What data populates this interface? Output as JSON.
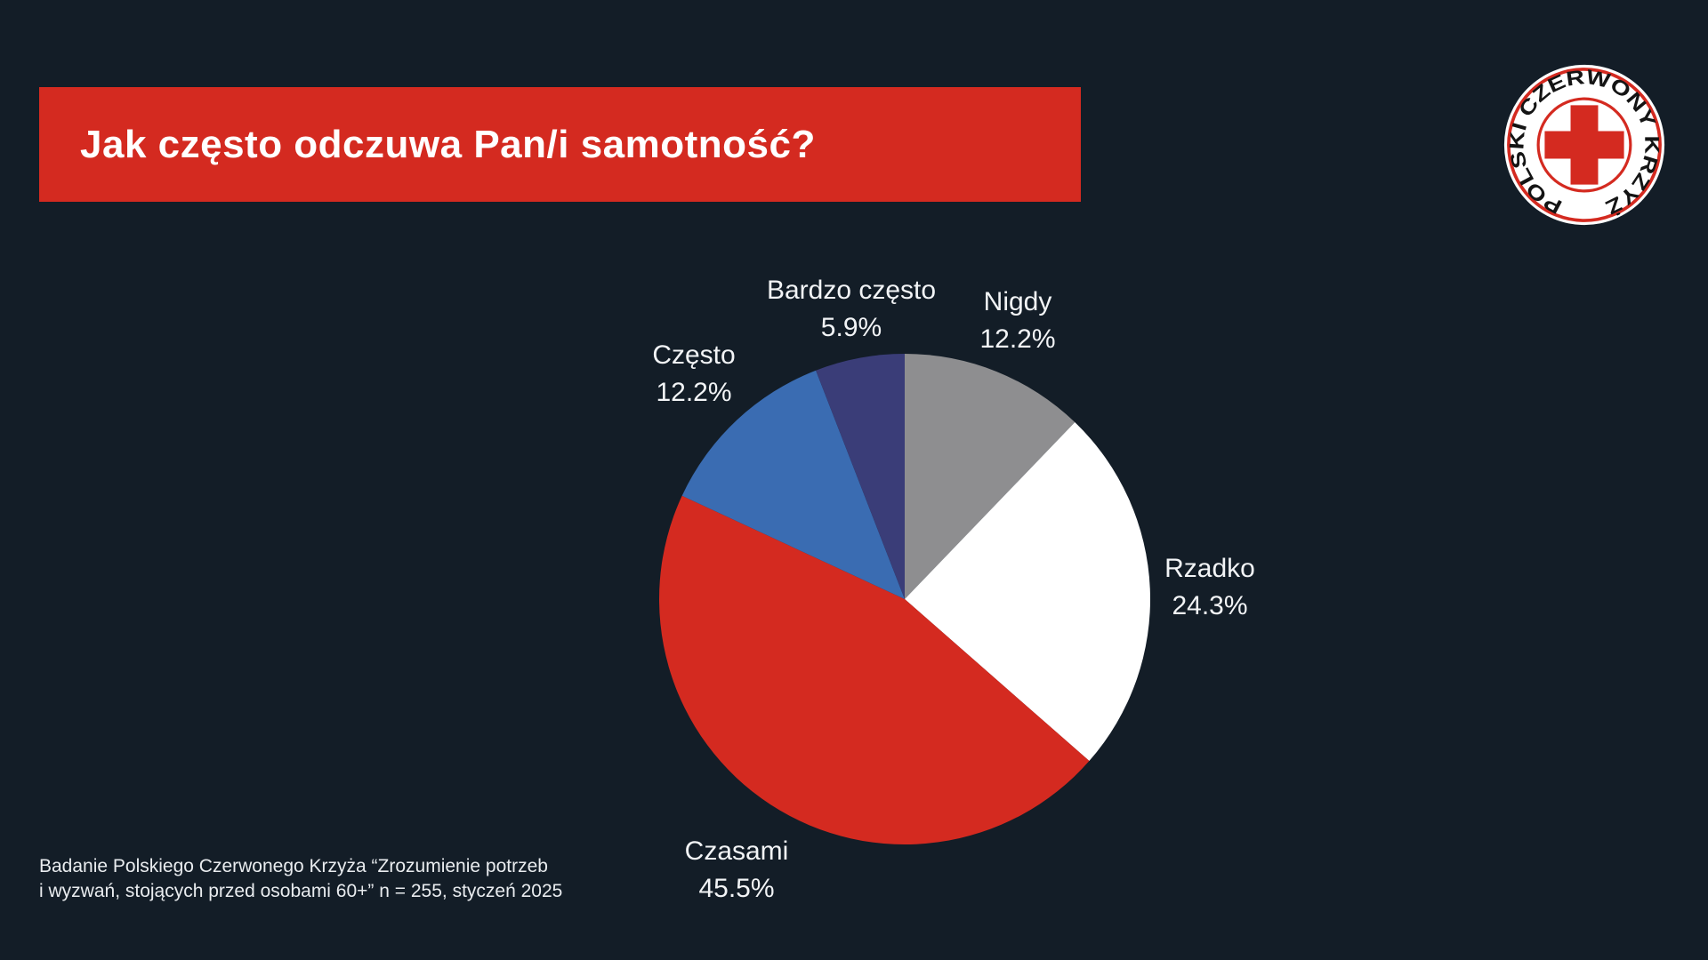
{
  "header": {
    "title": "Jak często odczuwa Pan/i samotność?"
  },
  "logo": {
    "text": "POLSKI CZERWONY KRZYŻ",
    "cross_color": "#d42a20",
    "ring_color": "#d42a20",
    "text_color": "#141414",
    "background": "#ffffff"
  },
  "chart_data": {
    "type": "pie",
    "title": "Jak często odczuwa Pan/i samotność?",
    "legend": "none",
    "start_angle_deg": -90,
    "direction": "clockwise",
    "series": [
      {
        "name": "Nigdy",
        "value": 12.2,
        "pct_label": "12.2%",
        "color": "#8e8e90"
      },
      {
        "name": "Rzadko",
        "value": 24.3,
        "pct_label": "24.3%",
        "color": "#ffffff"
      },
      {
        "name": "Czasami",
        "value": 45.5,
        "pct_label": "45.5%",
        "color": "#d42a20"
      },
      {
        "name": "Często",
        "value": 12.2,
        "pct_label": "12.2%",
        "color": "#3a6cb2"
      },
      {
        "name": "Bardzo często",
        "value": 5.9,
        "pct_label": "5.9%",
        "color": "#3a3d78"
      }
    ]
  },
  "footer": {
    "line1": "Badanie Polskiego Czerwonego Krzyża “Zrozumienie potrzeb",
    "line2": "i wyzwań, stojących przed osobami 60+” n = 255, styczeń 2025"
  },
  "colors": {
    "background": "#131d27",
    "accent_red": "#d42a20",
    "label_text": "#f2f4f6"
  }
}
